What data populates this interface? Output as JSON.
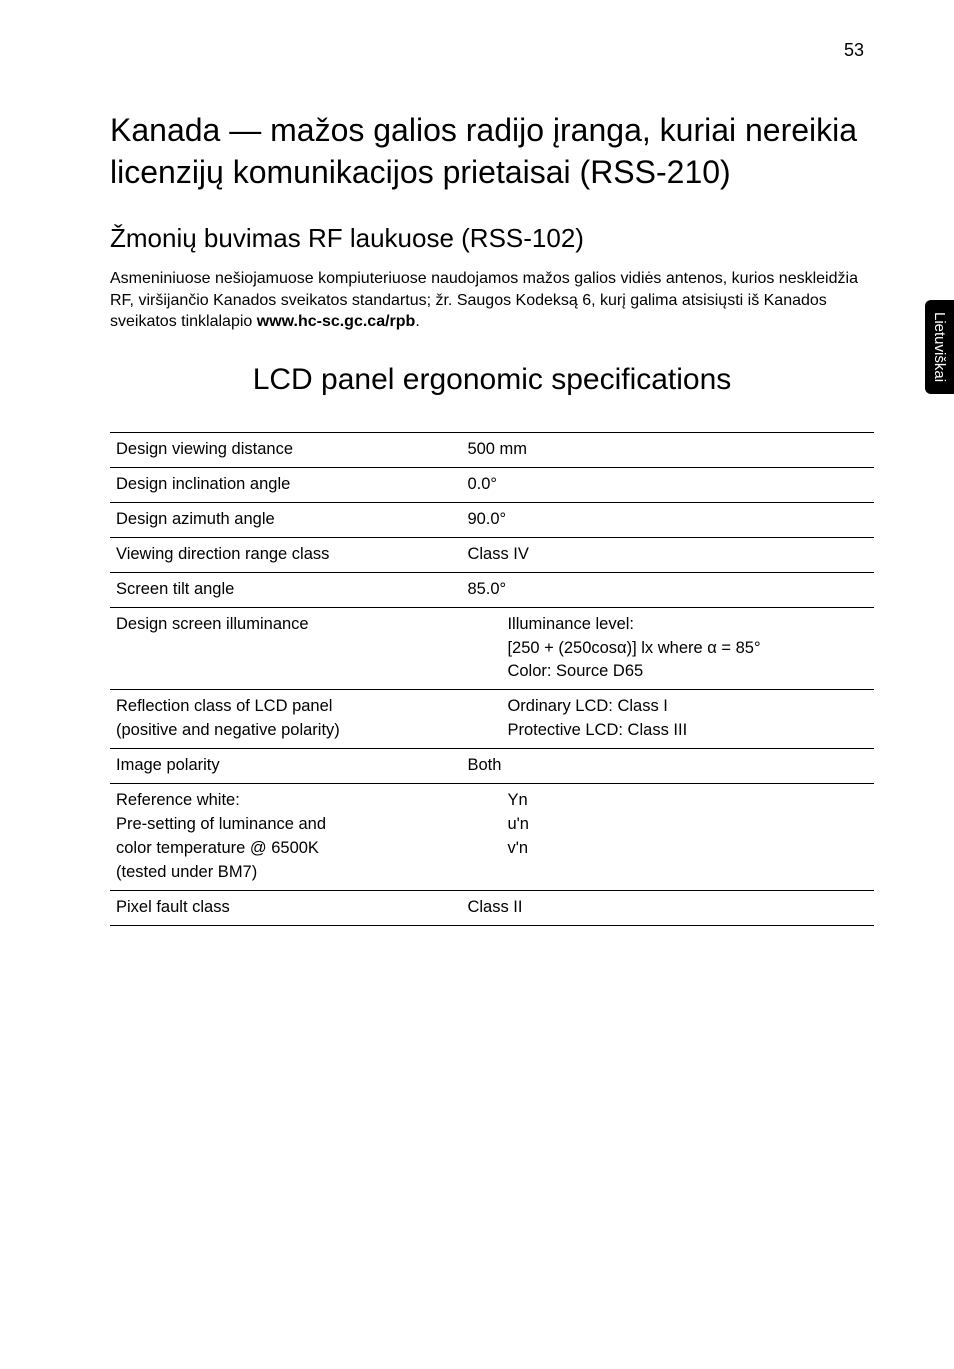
{
  "page": {
    "number": "53"
  },
  "sideTab": {
    "label": "Lietuviškai",
    "bg": "#000000",
    "fg": "#ffffff"
  },
  "heading1": "Kanada — mažos galios radijo įranga, kuriai nereikia licenzijų komunikacijos prietaisai (RSS-210)",
  "heading2": "Žmonių buvimas RF laukuose (RSS-102)",
  "paragraph": {
    "line1": "Asmeniniuose nešiojamuose kompiuteriuose naudojamos mažos galios vidiės antenos, kurios neskleidžia RF, viršijančio Kanados sveikatos standartus; žr. Saugos Kodeksą 6, kurį galima atsisiųsti iš Kanados sveikatos tinklalapio ",
    "bold": "www.hc-sc.gc.ca/rpb",
    "tail": "."
  },
  "sectionHeading": "LCD panel ergonomic specifications",
  "table": {
    "rows": [
      {
        "label": "Design viewing distance",
        "value": "500 mm"
      },
      {
        "label": "Design inclination angle",
        "value": "0.0°"
      },
      {
        "label": "Design azimuth angle",
        "value": "90.0°"
      },
      {
        "label": "Viewing direction range class",
        "value": "Class IV"
      },
      {
        "label": "Screen tilt angle",
        "value": "85.0°"
      },
      {
        "label": "Design screen illuminance",
        "multiline": [
          "Illuminance level:",
          "[250 + (250cosα)] lx where α = 85°",
          "Color: Source D65"
        ]
      },
      {
        "labelLines": [
          "Reflection class of LCD panel",
          "(positive and negative polarity)"
        ],
        "multiline": [
          "Ordinary LCD: Class I",
          "Protective LCD: Class III"
        ]
      },
      {
        "label": "Image polarity",
        "value": "Both"
      },
      {
        "labelLines": [
          "Reference white:",
          "Pre-setting of luminance and",
          "color temperature @ 6500K",
          "(tested under BM7)"
        ],
        "multiline": [
          "Yn",
          "u'n",
          "v'n"
        ]
      },
      {
        "label": "Pixel fault class",
        "value": "Class II"
      }
    ]
  }
}
